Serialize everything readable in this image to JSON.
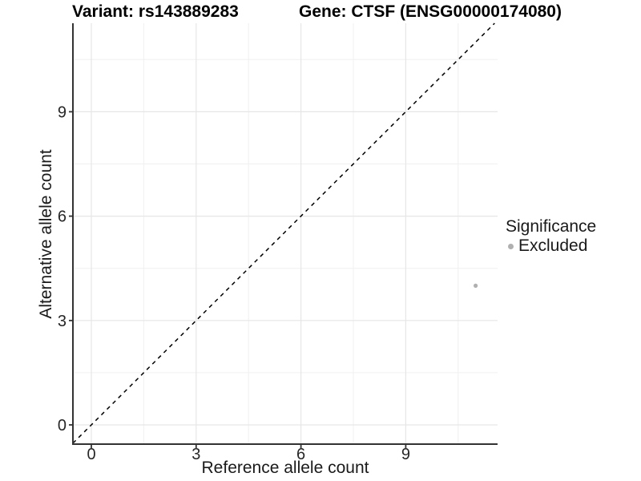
{
  "figure": {
    "title_left": "Variant: rs143889283",
    "title_right": "Gene: CTSF (ENSG00000174080)"
  },
  "chart_data": {
    "type": "scatter",
    "title": "Variant: rs143889283 — Gene: CTSF (ENSG00000174080)",
    "xlabel": "Reference allele count",
    "ylabel": "Alternative allele count",
    "x_ticks": [
      0,
      3,
      6,
      9
    ],
    "y_ticks": [
      0,
      3,
      6,
      9
    ],
    "xlim": [
      -0.55,
      11.63
    ],
    "ylim": [
      -0.55,
      11.55
    ],
    "grid": "major and minor gridlines, light gray on white panel",
    "identity_line": {
      "type": "abline",
      "intercept": 0,
      "slope": 1,
      "style": "dashed",
      "color": "#000000"
    },
    "series": [
      {
        "name": "Excluded",
        "color": "#b0b0b0",
        "points": [
          {
            "x": 11,
            "y": 4
          }
        ]
      }
    ],
    "legend": {
      "title": "Significance",
      "position": "right",
      "items": [
        {
          "label": "Excluded",
          "color": "#b0b0b0"
        }
      ]
    }
  }
}
